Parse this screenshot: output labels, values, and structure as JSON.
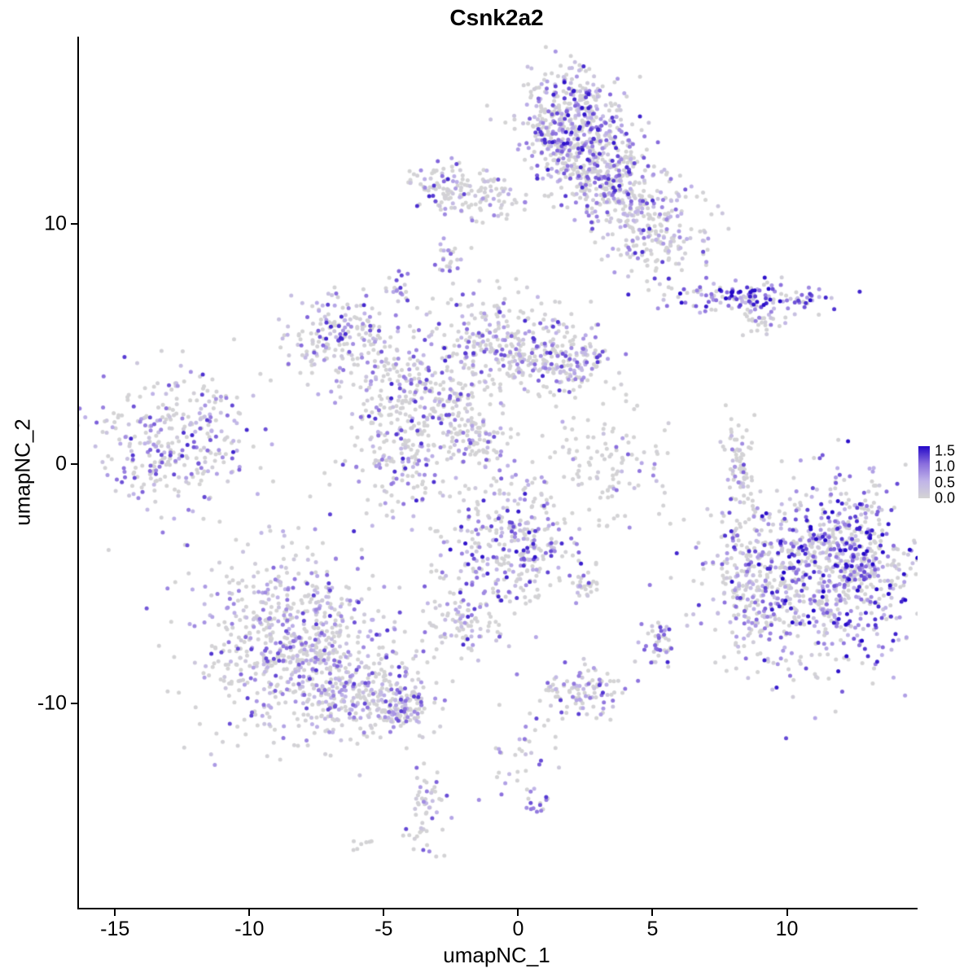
{
  "title": "Csnk2a2",
  "chart_data": {
    "type": "scatter",
    "title": "Csnk2a2",
    "xlabel": "umapNC_1",
    "ylabel": "umapNC_2",
    "x_range": [
      -16.4,
      14.8
    ],
    "y_range": [
      -18.5,
      17.8
    ],
    "x_ticks": [
      -15,
      -10,
      -5,
      0,
      5,
      10
    ],
    "y_ticks": [
      -10,
      0,
      10
    ],
    "grid": false,
    "background": "#ffffff",
    "point_radius": 2.5,
    "seed": 42,
    "legend": {
      "position": "right",
      "ticks": [
        1.5,
        1.0,
        0.5,
        0.0
      ],
      "min": 0.0,
      "max": 1.65
    },
    "colorscale": [
      {
        "t": 0.0,
        "color": "#d4d4d4"
      },
      {
        "t": 0.33,
        "color": "#c0b4e8"
      },
      {
        "t": 0.66,
        "color": "#8a6edd"
      },
      {
        "t": 1.0,
        "color": "#2408c8"
      }
    ],
    "clusters": [
      {
        "name": "top-center-core",
        "cx": 1.9,
        "cy": 14.3,
        "sx": 0.95,
        "sy": 1.1,
        "n": 420,
        "frac": 0.6,
        "max": 1.6,
        "pow": 1.1
      },
      {
        "name": "top-center-south",
        "cx": 2.6,
        "cy": 12.6,
        "sx": 1.0,
        "sy": 0.8,
        "n": 200,
        "frac": 0.55,
        "max": 1.5,
        "pow": 1.3
      },
      {
        "name": "top-right-arm",
        "cx": 3.6,
        "cy": 11.4,
        "sx": 0.9,
        "sy": 0.8,
        "n": 180,
        "frac": 0.5,
        "max": 1.5,
        "pow": 1.3
      },
      {
        "name": "top-right-lower",
        "cx": 5.0,
        "cy": 9.6,
        "sx": 1.0,
        "sy": 0.9,
        "n": 200,
        "frac": 0.5,
        "max": 1.5,
        "pow": 1.3
      },
      {
        "name": "top-left-a",
        "cx": -2.9,
        "cy": 11.5,
        "sx": 0.6,
        "sy": 0.5,
        "n": 80,
        "frac": 0.5,
        "max": 1.5,
        "pow": 1.2
      },
      {
        "name": "top-left-b",
        "cx": -1.3,
        "cy": 11.2,
        "sx": 0.7,
        "sy": 0.45,
        "n": 80,
        "frac": 0.45,
        "max": 1.4,
        "pow": 1.4
      },
      {
        "name": "strand-8-7",
        "cx": -2.7,
        "cy": 8.7,
        "sx": 0.18,
        "sy": 0.4,
        "n": 22,
        "frac": 0.65,
        "max": 1.3,
        "pow": 1.0
      },
      {
        "name": "small-7-4",
        "cx": -4.5,
        "cy": 7.4,
        "sx": 0.22,
        "sy": 0.35,
        "n": 20,
        "frac": 0.7,
        "max": 1.4,
        "pow": 0.9
      },
      {
        "name": "right-horizontal",
        "cx": 8.6,
        "cy": 6.9,
        "sx": 1.5,
        "sy": 0.3,
        "n": 150,
        "frac": 0.75,
        "max": 1.7,
        "pow": 0.8
      },
      {
        "name": "right-horizontal-tail",
        "cx": 9.1,
        "cy": 5.9,
        "sx": 0.4,
        "sy": 0.25,
        "n": 25,
        "frac": 0.6,
        "max": 1.4,
        "pow": 1.0
      },
      {
        "name": "northwest-mid",
        "cx": -6.8,
        "cy": 5.4,
        "sx": 1.2,
        "sy": 0.85,
        "n": 170,
        "frac": 0.5,
        "max": 1.5,
        "pow": 1.3
      },
      {
        "name": "northwest-branch",
        "cx": -4.6,
        "cy": 3.8,
        "sx": 1.3,
        "sy": 0.95,
        "n": 130,
        "frac": 0.45,
        "max": 1.4,
        "pow": 1.4
      },
      {
        "name": "center-core",
        "cx": -0.6,
        "cy": 4.9,
        "sx": 1.25,
        "sy": 1.15,
        "n": 280,
        "frac": 0.5,
        "max": 1.5,
        "pow": 1.2
      },
      {
        "name": "center-east",
        "cx": 1.8,
        "cy": 4.2,
        "sx": 0.95,
        "sy": 0.65,
        "n": 150,
        "frac": 0.45,
        "max": 1.4,
        "pow": 1.3
      },
      {
        "name": "center-southwest",
        "cx": -2.4,
        "cy": 2.5,
        "sx": 0.8,
        "sy": 0.8,
        "n": 70,
        "frac": 0.45,
        "max": 1.4,
        "pow": 1.3
      },
      {
        "name": "diagonal-streak",
        "cx": -1.6,
        "cy": 0.9,
        "sx": 0.65,
        "sy": 0.45,
        "n": 80,
        "frac": 0.45,
        "max": 1.3,
        "pow": 1.3
      },
      {
        "name": "mid-left-blob",
        "cx": -4.2,
        "cy": 0.9,
        "sx": 1.2,
        "sy": 1.6,
        "n": 250,
        "frac": 0.45,
        "max": 1.5,
        "pow": 1.3
      },
      {
        "name": "far-left",
        "cx": -13.0,
        "cy": 1.0,
        "sx": 1.55,
        "sy": 1.3,
        "n": 320,
        "frac": 0.55,
        "max": 1.5,
        "pow": 1.1
      },
      {
        "name": "mid-sparse",
        "cx": 3.3,
        "cy": 0.0,
        "sx": 1.2,
        "sy": 1.2,
        "n": 110,
        "frac": 0.3,
        "max": 1.2,
        "pow": 1.6
      },
      {
        "name": "narrow-vertical",
        "cx": 8.25,
        "cy": 0.1,
        "sx": 0.25,
        "sy": 1.0,
        "n": 65,
        "frac": 0.3,
        "max": 1.3,
        "pow": 1.4
      },
      {
        "name": "right-big-core",
        "cx": 11.0,
        "cy": -4.6,
        "sx": 2.1,
        "sy": 2.0,
        "n": 750,
        "frac": 0.6,
        "max": 1.7,
        "pow": 1.0
      },
      {
        "name": "right-big-east",
        "cx": 12.3,
        "cy": -3.9,
        "sx": 1.0,
        "sy": 1.3,
        "n": 250,
        "frac": 0.6,
        "max": 1.7,
        "pow": 0.9
      },
      {
        "name": "right-big-west-tail",
        "cx": 8.5,
        "cy": -5.6,
        "sx": 0.5,
        "sy": 1.5,
        "n": 120,
        "frac": 0.5,
        "max": 1.4,
        "pow": 1.3
      },
      {
        "name": "center-bottom",
        "cx": -0.3,
        "cy": -3.5,
        "sx": 1.3,
        "sy": 1.4,
        "n": 330,
        "frac": 0.55,
        "max": 1.6,
        "pow": 1.1
      },
      {
        "name": "center-bottom-streak",
        "cx": 2.5,
        "cy": -5.1,
        "sx": 0.3,
        "sy": 0.3,
        "n": 25,
        "frac": 0.5,
        "max": 1.3,
        "pow": 1.2
      },
      {
        "name": "small-left-bottom",
        "cx": -2.1,
        "cy": -6.6,
        "sx": 0.75,
        "sy": 0.65,
        "n": 85,
        "frac": 0.5,
        "max": 1.5,
        "pow": 1.2
      },
      {
        "name": "small-right-bottom",
        "cx": 5.1,
        "cy": -7.4,
        "sx": 0.3,
        "sy": 0.5,
        "n": 40,
        "frac": 0.6,
        "max": 1.5,
        "pow": 1.0
      },
      {
        "name": "bottom-left-core",
        "cx": -8.4,
        "cy": -7.6,
        "sx": 1.8,
        "sy": 1.9,
        "n": 750,
        "frac": 0.55,
        "max": 1.4,
        "pow": 1.5
      },
      {
        "name": "bottom-left-ext",
        "cx": -5.6,
        "cy": -9.6,
        "sx": 1.1,
        "sy": 0.85,
        "n": 200,
        "frac": 0.5,
        "max": 1.4,
        "pow": 1.4
      },
      {
        "name": "bottom-left-tip",
        "cx": -4.4,
        "cy": -10.2,
        "sx": 0.5,
        "sy": 0.4,
        "n": 80,
        "frac": 0.6,
        "max": 1.4,
        "pow": 1.1
      },
      {
        "name": "small-bottom-mid",
        "cx": 2.4,
        "cy": -9.5,
        "sx": 0.8,
        "sy": 0.55,
        "n": 100,
        "frac": 0.5,
        "max": 1.4,
        "pow": 1.2
      },
      {
        "name": "bottom-trail",
        "cx": 0.2,
        "cy": -12.0,
        "sx": 0.7,
        "sy": 1.0,
        "n": 40,
        "frac": 0.4,
        "max": 1.3,
        "pow": 1.4
      },
      {
        "name": "tiny-bottom",
        "cx": 0.6,
        "cy": -14.1,
        "sx": 0.2,
        "sy": 0.3,
        "n": 12,
        "frac": 0.7,
        "max": 1.4,
        "pow": 0.9
      },
      {
        "name": "bottom-vertical",
        "cx": -3.5,
        "cy": -14.4,
        "sx": 0.35,
        "sy": 1.0,
        "n": 55,
        "frac": 0.55,
        "max": 1.4,
        "pow": 1.2
      },
      {
        "name": "tiny-pair",
        "cx": -5.8,
        "cy": -15.9,
        "sx": 0.25,
        "sy": 0.2,
        "n": 7,
        "frac": 0.2,
        "max": 0.8,
        "pow": 1.5
      }
    ],
    "singles": [
      {
        "x": -1.8,
        "y": 9.0,
        "e": 0.0
      },
      {
        "x": 0.2,
        "y": 10.9,
        "e": 0.9
      },
      {
        "x": 3.1,
        "y": 2.5,
        "e": 0.0
      },
      {
        "x": 1.0,
        "y": -1.5,
        "e": 0.0
      },
      {
        "x": -0.4,
        "y": -7.6,
        "e": 0.3
      },
      {
        "x": 5.6,
        "y": -2.5,
        "e": 0.0
      },
      {
        "x": -7.5,
        "y": 2.9,
        "e": 0.6
      },
      {
        "x": -11.3,
        "y": 2.7,
        "e": 0.8
      }
    ]
  }
}
